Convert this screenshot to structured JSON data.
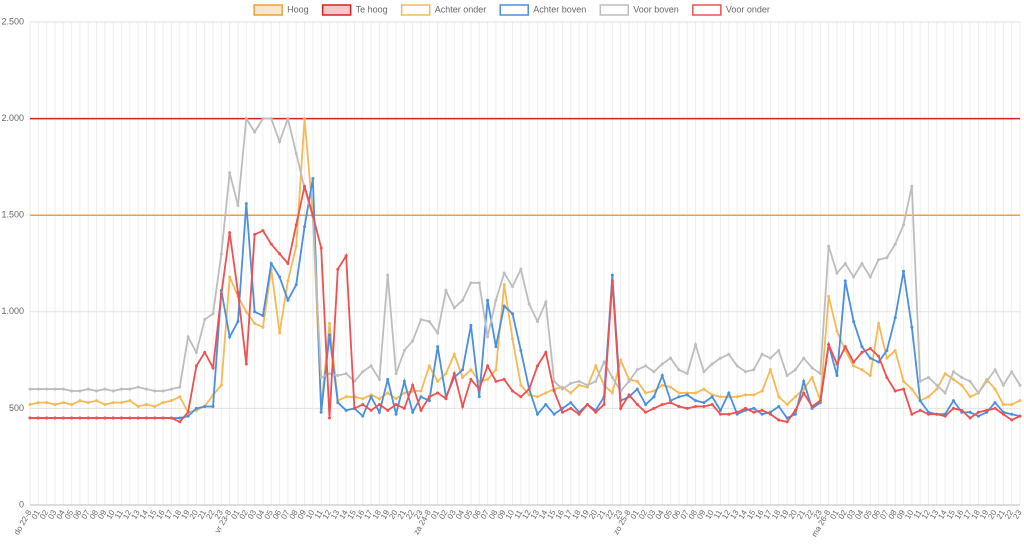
{
  "chart_data": {
    "type": "line",
    "ylim": [
      0,
      2500
    ],
    "yticks": [
      0,
      500,
      {
        "value": 1000,
        "label": "1.000"
      },
      {
        "value": 1500,
        "label": "1.500"
      },
      {
        "value": 2000,
        "label": "2.000"
      },
      {
        "value": 2500,
        "label": "2.500"
      }
    ],
    "grid": true,
    "legend": "top",
    "thresholds": [
      {
        "name": "Hoog",
        "color": "#f0a030",
        "value": 1500
      },
      {
        "name": "Te hoog",
        "color": "#d62020",
        "value": 2000
      }
    ],
    "categories": [
      "do 22-8",
      "01",
      "02",
      "03",
      "04",
      "05",
      "06",
      "07",
      "08",
      "09",
      "10",
      "11",
      "12",
      "13",
      "14",
      "15",
      "16",
      "17",
      "18",
      "19",
      "20",
      "21",
      "22",
      "23",
      "vr 23-8",
      "01",
      "02",
      "03",
      "04",
      "05",
      "06",
      "07",
      "08",
      "09",
      "10",
      "11",
      "12",
      "13",
      "14",
      "15",
      "16",
      "17",
      "18",
      "19",
      "20",
      "21",
      "22",
      "23",
      "za 24-8",
      "01",
      "02",
      "03",
      "04",
      "05",
      "06",
      "07",
      "08",
      "09",
      "10",
      "11",
      "12",
      "13",
      "14",
      "15",
      "16",
      "17",
      "18",
      "19",
      "20",
      "21",
      "22",
      "23",
      "zo 25-8",
      "01",
      "02",
      "03",
      "04",
      "05",
      "06",
      "07",
      "08",
      "09",
      "10",
      "11",
      "12",
      "13",
      "14",
      "15",
      "16",
      "17",
      "18",
      "19",
      "20",
      "21",
      "22",
      "23",
      "ma 26-8",
      "01",
      "02",
      "03",
      "04",
      "05",
      "06",
      "07",
      "08",
      "09",
      "10",
      "11",
      "12",
      "13",
      "14",
      "15",
      "16",
      "17",
      "18",
      "19",
      "20",
      "21",
      "22",
      "23"
    ],
    "series": [
      {
        "name": "Achter onder",
        "color": "#f7b955",
        "values": [
          520,
          530,
          530,
          520,
          530,
          520,
          540,
          530,
          540,
          520,
          530,
          530,
          540,
          510,
          520,
          510,
          530,
          540,
          560,
          480,
          490,
          510,
          570,
          620,
          1180,
          1080,
          1000,
          940,
          920,
          1220,
          890,
          1160,
          1340,
          2000,
          1500,
          500,
          940,
          540,
          560,
          560,
          550,
          570,
          550,
          580,
          550,
          580,
          590,
          590,
          720,
          640,
          680,
          780,
          660,
          700,
          640,
          650,
          700,
          1140,
          860,
          620,
          570,
          560,
          580,
          600,
          610,
          580,
          620,
          610,
          720,
          620,
          580,
          750,
          650,
          640,
          580,
          590,
          620,
          610,
          580,
          580,
          580,
          600,
          570,
          560,
          560,
          560,
          570,
          570,
          590,
          700,
          560,
          520,
          560,
          600,
          660,
          540,
          1080,
          900,
          800,
          720,
          700,
          670,
          940,
          760,
          800,
          640,
          600,
          540,
          560,
          600,
          680,
          650,
          620,
          560,
          580,
          650,
          600,
          520,
          520,
          540
        ]
      },
      {
        "name": "Achter boven",
        "color": "#4a8fe0",
        "values": [
          450,
          450,
          450,
          450,
          450,
          450,
          450,
          450,
          450,
          450,
          450,
          450,
          450,
          450,
          450,
          450,
          450,
          450,
          450,
          460,
          500,
          510,
          510,
          1110,
          870,
          950,
          1560,
          1000,
          980,
          1250,
          1180,
          1060,
          1140,
          1440,
          1690,
          480,
          880,
          530,
          490,
          500,
          460,
          560,
          480,
          650,
          470,
          640,
          480,
          560,
          540,
          820,
          560,
          660,
          700,
          930,
          560,
          1060,
          820,
          1030,
          990,
          800,
          600,
          470,
          520,
          470,
          500,
          530,
          480,
          520,
          490,
          560,
          1190,
          540,
          560,
          600,
          520,
          560,
          670,
          540,
          560,
          570,
          540,
          530,
          560,
          490,
          580,
          470,
          490,
          500,
          470,
          480,
          510,
          450,
          470,
          640,
          500,
          530,
          830,
          670,
          1160,
          950,
          820,
          760,
          740,
          800,
          970,
          1210,
          920,
          540,
          480,
          470,
          470,
          540,
          480,
          480,
          460,
          480,
          530,
          480,
          470,
          460
        ]
      },
      {
        "name": "Voor boven",
        "color": "#bdbdbd",
        "values": [
          600,
          600,
          600,
          600,
          600,
          590,
          590,
          600,
          590,
          600,
          590,
          600,
          600,
          610,
          600,
          590,
          590,
          600,
          610,
          870,
          790,
          960,
          990,
          1300,
          1720,
          1550,
          2000,
          1930,
          2000,
          2000,
          1880,
          2000,
          1820,
          1640,
          1490,
          660,
          680,
          670,
          680,
          640,
          690,
          720,
          650,
          1190,
          680,
          800,
          850,
          960,
          950,
          890,
          1110,
          1020,
          1060,
          1150,
          1150,
          870,
          1060,
          1200,
          1130,
          1220,
          1040,
          950,
          1050,
          640,
          600,
          630,
          640,
          620,
          640,
          740,
          660,
          590,
          640,
          700,
          720,
          690,
          730,
          760,
          700,
          680,
          830,
          690,
          730,
          760,
          780,
          720,
          690,
          700,
          780,
          760,
          800,
          670,
          700,
          760,
          710,
          680,
          1340,
          1200,
          1250,
          1180,
          1250,
          1180,
          1270,
          1280,
          1350,
          1450,
          1650,
          640,
          660,
          620,
          580,
          690,
          660,
          640,
          580,
          640,
          700,
          620,
          690,
          620
        ]
      },
      {
        "name": "Voor onder",
        "color": "#ef5050",
        "values": [
          450,
          450,
          450,
          450,
          450,
          450,
          450,
          450,
          450,
          450,
          450,
          450,
          450,
          450,
          450,
          450,
          450,
          450,
          430,
          480,
          720,
          790,
          710,
          1090,
          1410,
          1100,
          730,
          1400,
          1420,
          1350,
          1300,
          1250,
          1450,
          1650,
          1500,
          1330,
          450,
          1220,
          1290,
          500,
          520,
          490,
          520,
          490,
          520,
          500,
          620,
          490,
          560,
          580,
          550,
          680,
          510,
          650,
          600,
          720,
          640,
          650,
          590,
          560,
          600,
          720,
          790,
          590,
          480,
          500,
          470,
          520,
          480,
          520,
          1160,
          500,
          570,
          520,
          480,
          500,
          520,
          530,
          510,
          500,
          510,
          510,
          520,
          470,
          470,
          480,
          500,
          480,
          490,
          470,
          440,
          430,
          490,
          580,
          510,
          540,
          830,
          730,
          820,
          740,
          790,
          810,
          770,
          660,
          590,
          600,
          470,
          490,
          470,
          470,
          460,
          500,
          490,
          450,
          480,
          490,
          500,
          470,
          440,
          460
        ]
      }
    ]
  }
}
